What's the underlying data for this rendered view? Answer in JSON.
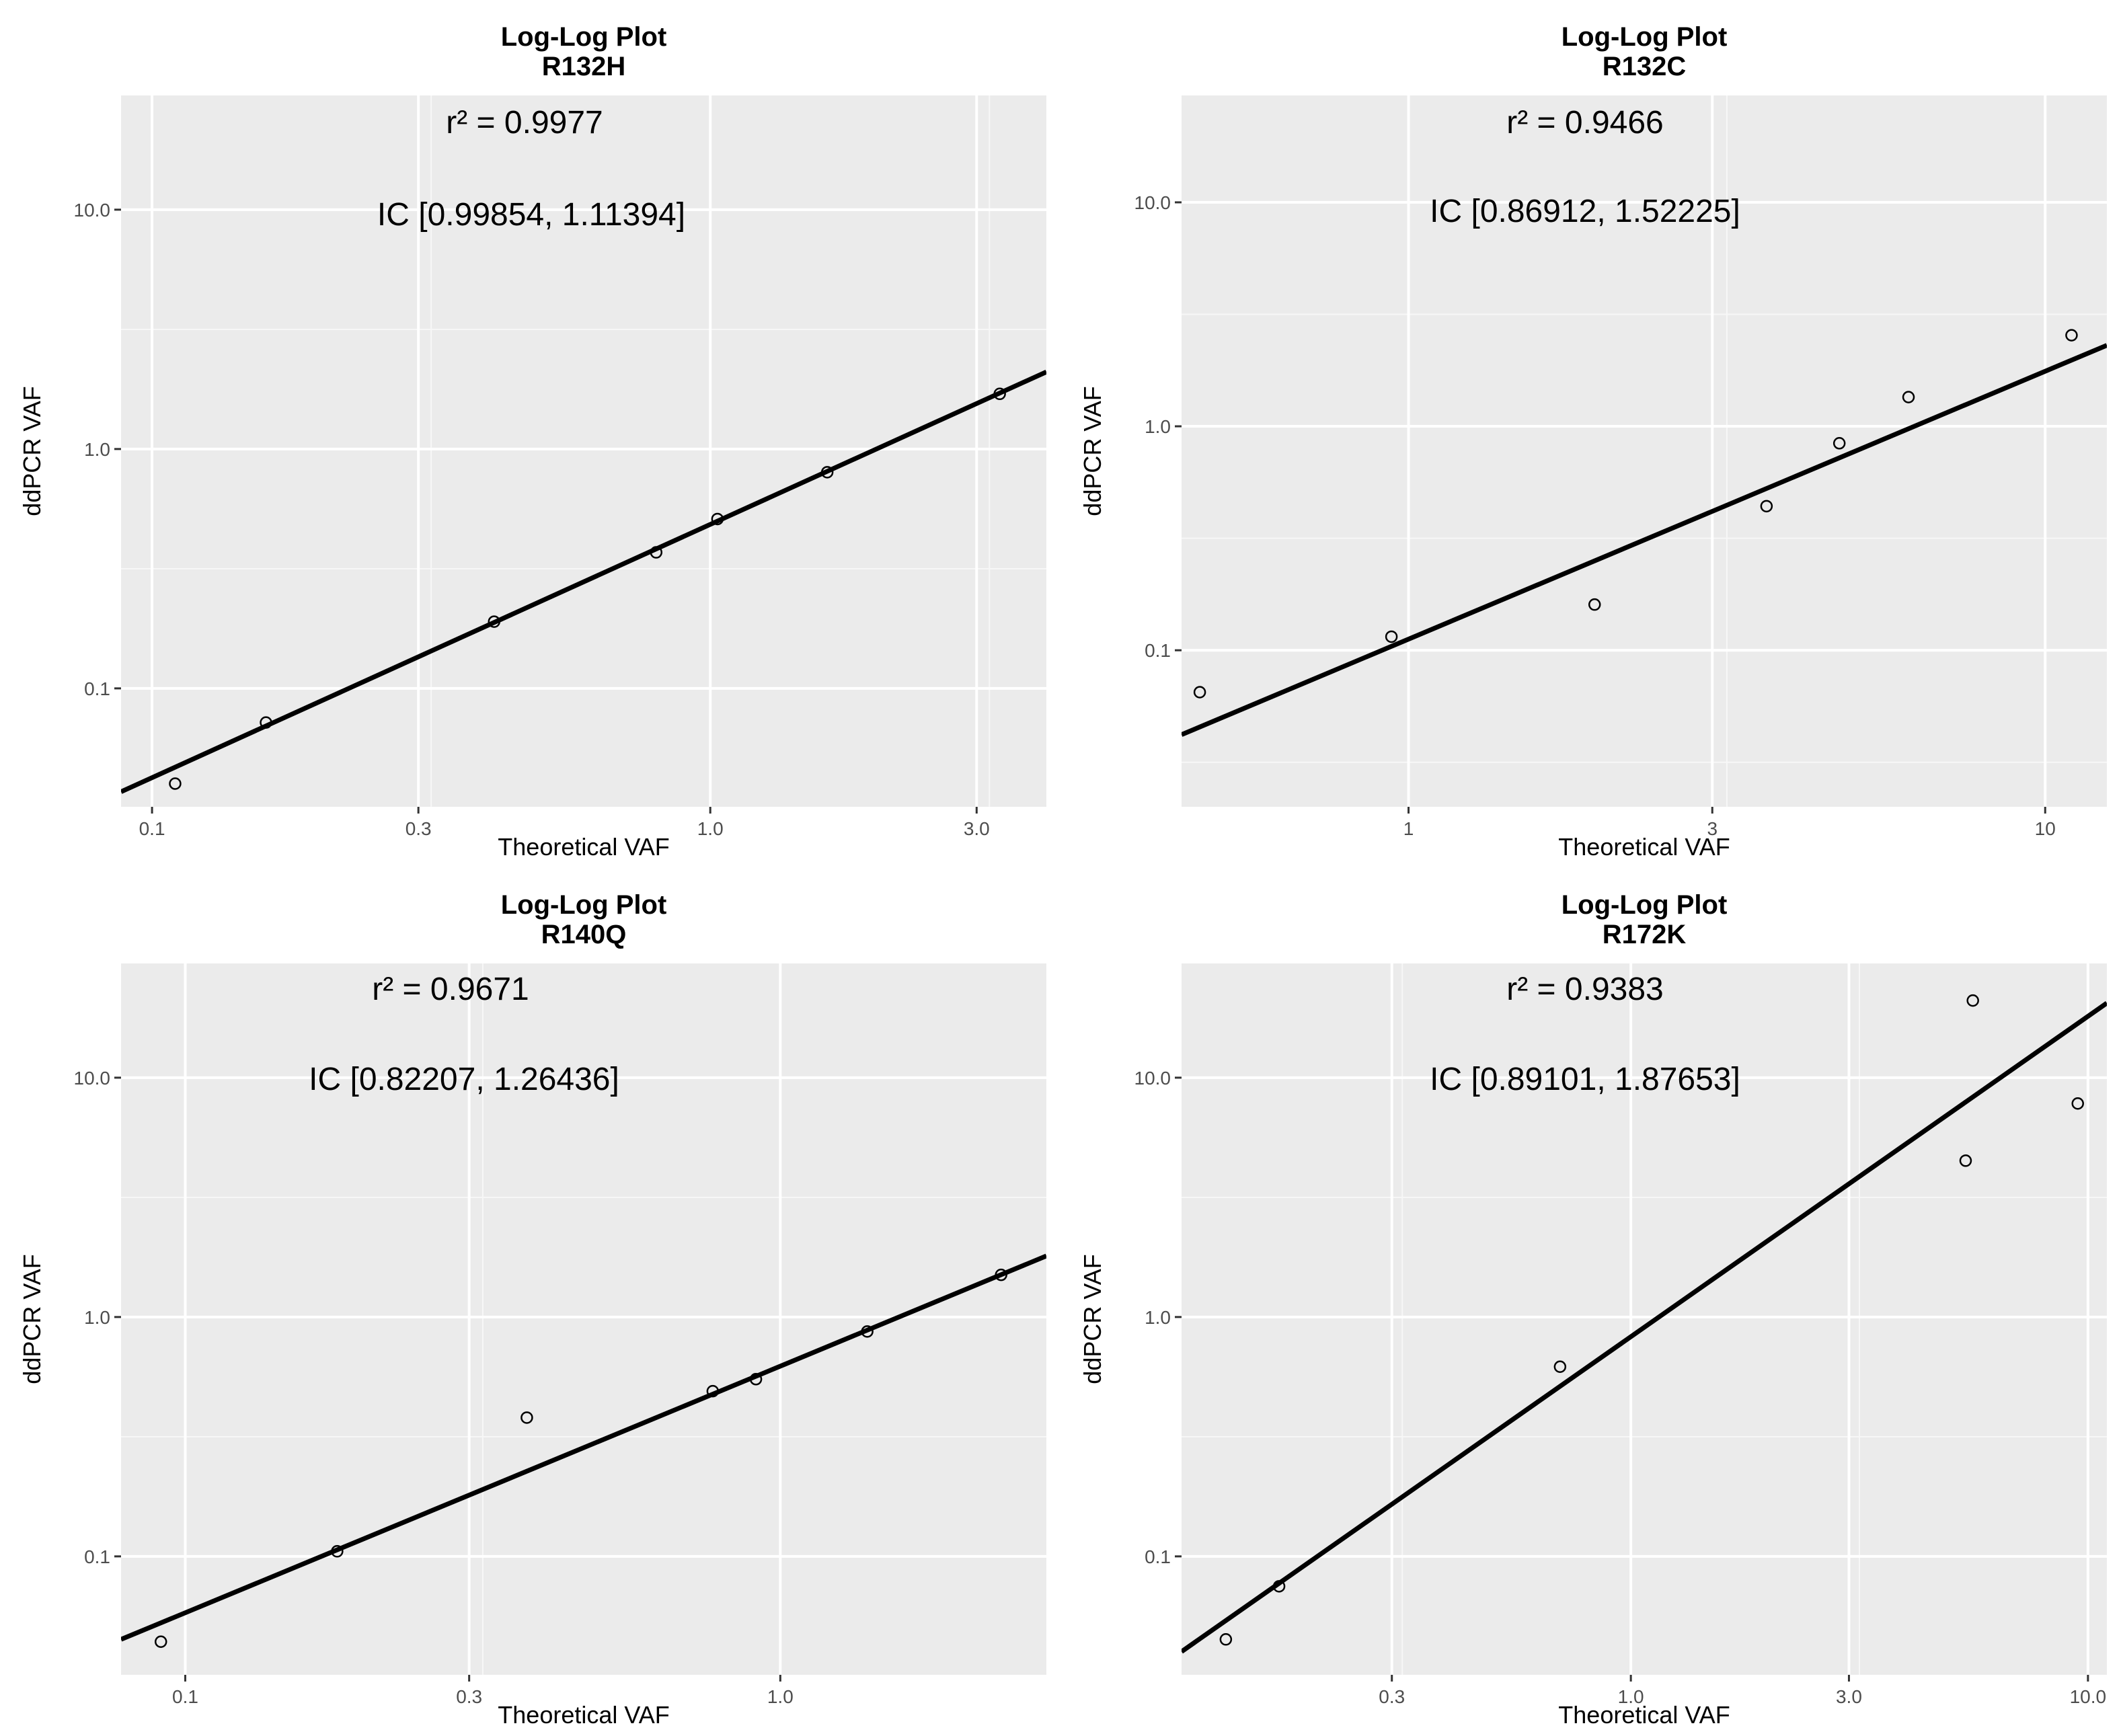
{
  "chart_data": [
    {
      "type": "scatter",
      "title": "Log-Log Plot",
      "subtitle": "R132H",
      "xlabel": "Theoretical VAF",
      "ylabel": "ddPCR VAF",
      "r2_label": "r² = 0.9977",
      "ic_label": "IC  [0.99854, 1.11394]",
      "x_scale": "log10",
      "y_scale": "log10",
      "xlim": [
        0.088,
        4.0
      ],
      "ylim": [
        0.032,
        30
      ],
      "x_ticks": [
        0.1,
        0.3,
        1.0,
        3.0
      ],
      "x_tick_labels": [
        "0.1",
        "0.3",
        "1.0",
        "3.0"
      ],
      "y_ticks": [
        0.1,
        1.0,
        10.0
      ],
      "y_tick_labels": [
        "0.1",
        "1.0",
        "10.0"
      ],
      "points": [
        {
          "x": 0.11,
          "y": 0.04
        },
        {
          "x": 0.16,
          "y": 0.072
        },
        {
          "x": 0.41,
          "y": 0.19
        },
        {
          "x": 0.8,
          "y": 0.37
        },
        {
          "x": 1.03,
          "y": 0.51
        },
        {
          "x": 1.62,
          "y": 0.8
        },
        {
          "x": 3.3,
          "y": 1.7
        }
      ],
      "fit_line": {
        "x": [
          0.088,
          4.0
        ],
        "y": [
          0.037,
          2.1
        ]
      }
    },
    {
      "type": "scatter",
      "title": "Log-Log Plot",
      "subtitle": "R132C",
      "xlabel": "Theoretical VAF",
      "ylabel": "ddPCR VAF",
      "r2_label": "r² = 0.9466",
      "ic_label": "IC  [0.86912, 1.52225]",
      "x_scale": "log10",
      "y_scale": "log10",
      "xlim": [
        0.44,
        12.5
      ],
      "ylim": [
        0.02,
        30
      ],
      "x_ticks": [
        1,
        3,
        10
      ],
      "x_tick_labels": [
        "1",
        "3",
        "10"
      ],
      "y_ticks": [
        0.1,
        1.0,
        10.0
      ],
      "y_tick_labels": [
        "0.1",
        "1.0",
        "10.0"
      ],
      "points": [
        {
          "x": 0.47,
          "y": 0.065
        },
        {
          "x": 0.94,
          "y": 0.115
        },
        {
          "x": 1.96,
          "y": 0.16
        },
        {
          "x": 3.65,
          "y": 0.44
        },
        {
          "x": 4.75,
          "y": 0.84
        },
        {
          "x": 6.1,
          "y": 1.35
        },
        {
          "x": 11.0,
          "y": 2.55
        }
      ],
      "fit_line": {
        "x": [
          0.44,
          12.5
        ],
        "y": [
          0.042,
          2.3
        ]
      }
    },
    {
      "type": "scatter",
      "title": "Log-Log Plot",
      "subtitle": "R140Q",
      "xlabel": "Theoretical VAF",
      "ylabel": "ddPCR VAF",
      "r2_label": "r² = 0.9671",
      "ic_label": "IC  [0.82207, 1.26436]",
      "x_scale": "log10",
      "y_scale": "log10",
      "xlim": [
        0.078,
        2.8
      ],
      "ylim": [
        0.032,
        30
      ],
      "x_ticks": [
        0.1,
        0.3,
        1.0
      ],
      "x_tick_labels": [
        "0.1",
        "0.3",
        "1.0"
      ],
      "y_ticks": [
        0.1,
        1.0,
        10.0
      ],
      "y_tick_labels": [
        "0.1",
        "1.0",
        "10.0"
      ],
      "points": [
        {
          "x": 0.091,
          "y": 0.044
        },
        {
          "x": 0.18,
          "y": 0.105
        },
        {
          "x": 0.375,
          "y": 0.38
        },
        {
          "x": 0.77,
          "y": 0.49
        },
        {
          "x": 0.91,
          "y": 0.55
        },
        {
          "x": 1.4,
          "y": 0.87
        },
        {
          "x": 2.35,
          "y": 1.5
        }
      ],
      "fit_line": {
        "x": [
          0.078,
          2.8
        ],
        "y": [
          0.045,
          1.8
        ]
      }
    },
    {
      "type": "scatter",
      "title": "Log-Log Plot",
      "subtitle": "R172K",
      "xlabel": "Theoretical VAF",
      "ylabel": "ddPCR VAF",
      "r2_label": "r² = 0.9383",
      "ic_label": "IC  [0.89101, 1.87653]",
      "x_scale": "log10",
      "y_scale": "log10",
      "xlim": [
        0.104,
        11.0
      ],
      "ylim": [
        0.032,
        30
      ],
      "x_ticks": [
        0.3,
        1.0,
        3.0,
        10.0
      ],
      "x_tick_labels": [
        "0.3",
        "1.0",
        "3.0",
        "10.0"
      ],
      "y_ticks": [
        0.1,
        1.0,
        10.0
      ],
      "y_tick_labels": [
        "0.1",
        "1.0",
        "10.0"
      ],
      "points": [
        {
          "x": 0.13,
          "y": 0.045
        },
        {
          "x": 0.17,
          "y": 0.075
        },
        {
          "x": 0.7,
          "y": 0.62
        },
        {
          "x": 5.4,
          "y": 4.5
        },
        {
          "x": 5.6,
          "y": 21
        },
        {
          "x": 9.5,
          "y": 7.8
        }
      ],
      "fit_line": {
        "x": [
          0.104,
          11.0
        ],
        "y": [
          0.04,
          20.5
        ]
      }
    }
  ]
}
